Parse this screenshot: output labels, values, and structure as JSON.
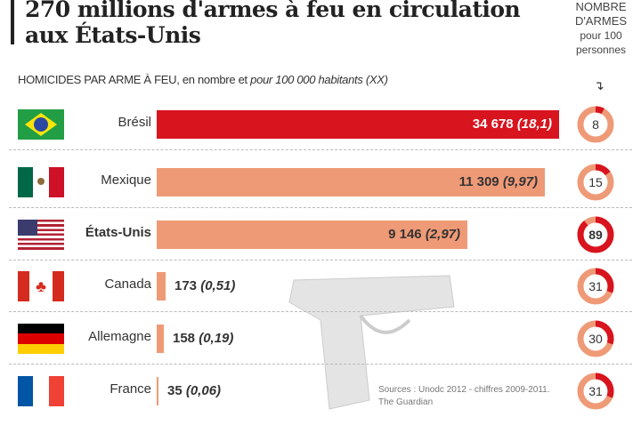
{
  "chart_data": {
    "type": "bar",
    "title": "270 millions d'armes à feu en circulation aux États-Unis",
    "subtitle_main": "HOMICIDES PAR ARME À FEU, en nombre et ",
    "subtitle_italic": "pour 100 000 habitants (XX)",
    "right_header": [
      "NOMBRE",
      "D'ARMES",
      "pour 100",
      "personnes"
    ],
    "categories": [
      "Brésil",
      "Mexique",
      "États-Unis",
      "Canada",
      "Allemagne",
      "France"
    ],
    "series": [
      {
        "values": [
          34678,
          11309,
          9146,
          173,
          158,
          35
        ],
        "labels": [
          "34 678",
          "11 309",
          "9 146",
          "173",
          "158",
          "35"
        ]
      },
      {
        "values": [
          18.1,
          9.97,
          2.97,
          0.51,
          0.19,
          0.06
        ],
        "labels": [
          "(18,1)",
          "(9,97)",
          "(2,97)",
          "(0,51)",
          "(0,19)",
          "(0,06)"
        ]
      },
      {
        "values": [
          8,
          15,
          89,
          31,
          30,
          31
        ]
      }
    ],
    "colors": {
      "highlight": "#d8141e",
      "bar": "#ef9a77",
      "donut_rest": "#ef9a77",
      "donut_fill": "#d8141e"
    },
    "source": [
      "Sources : Unodc 2012 - chiffres 2009-2011.",
      "The Guardian"
    ]
  }
}
